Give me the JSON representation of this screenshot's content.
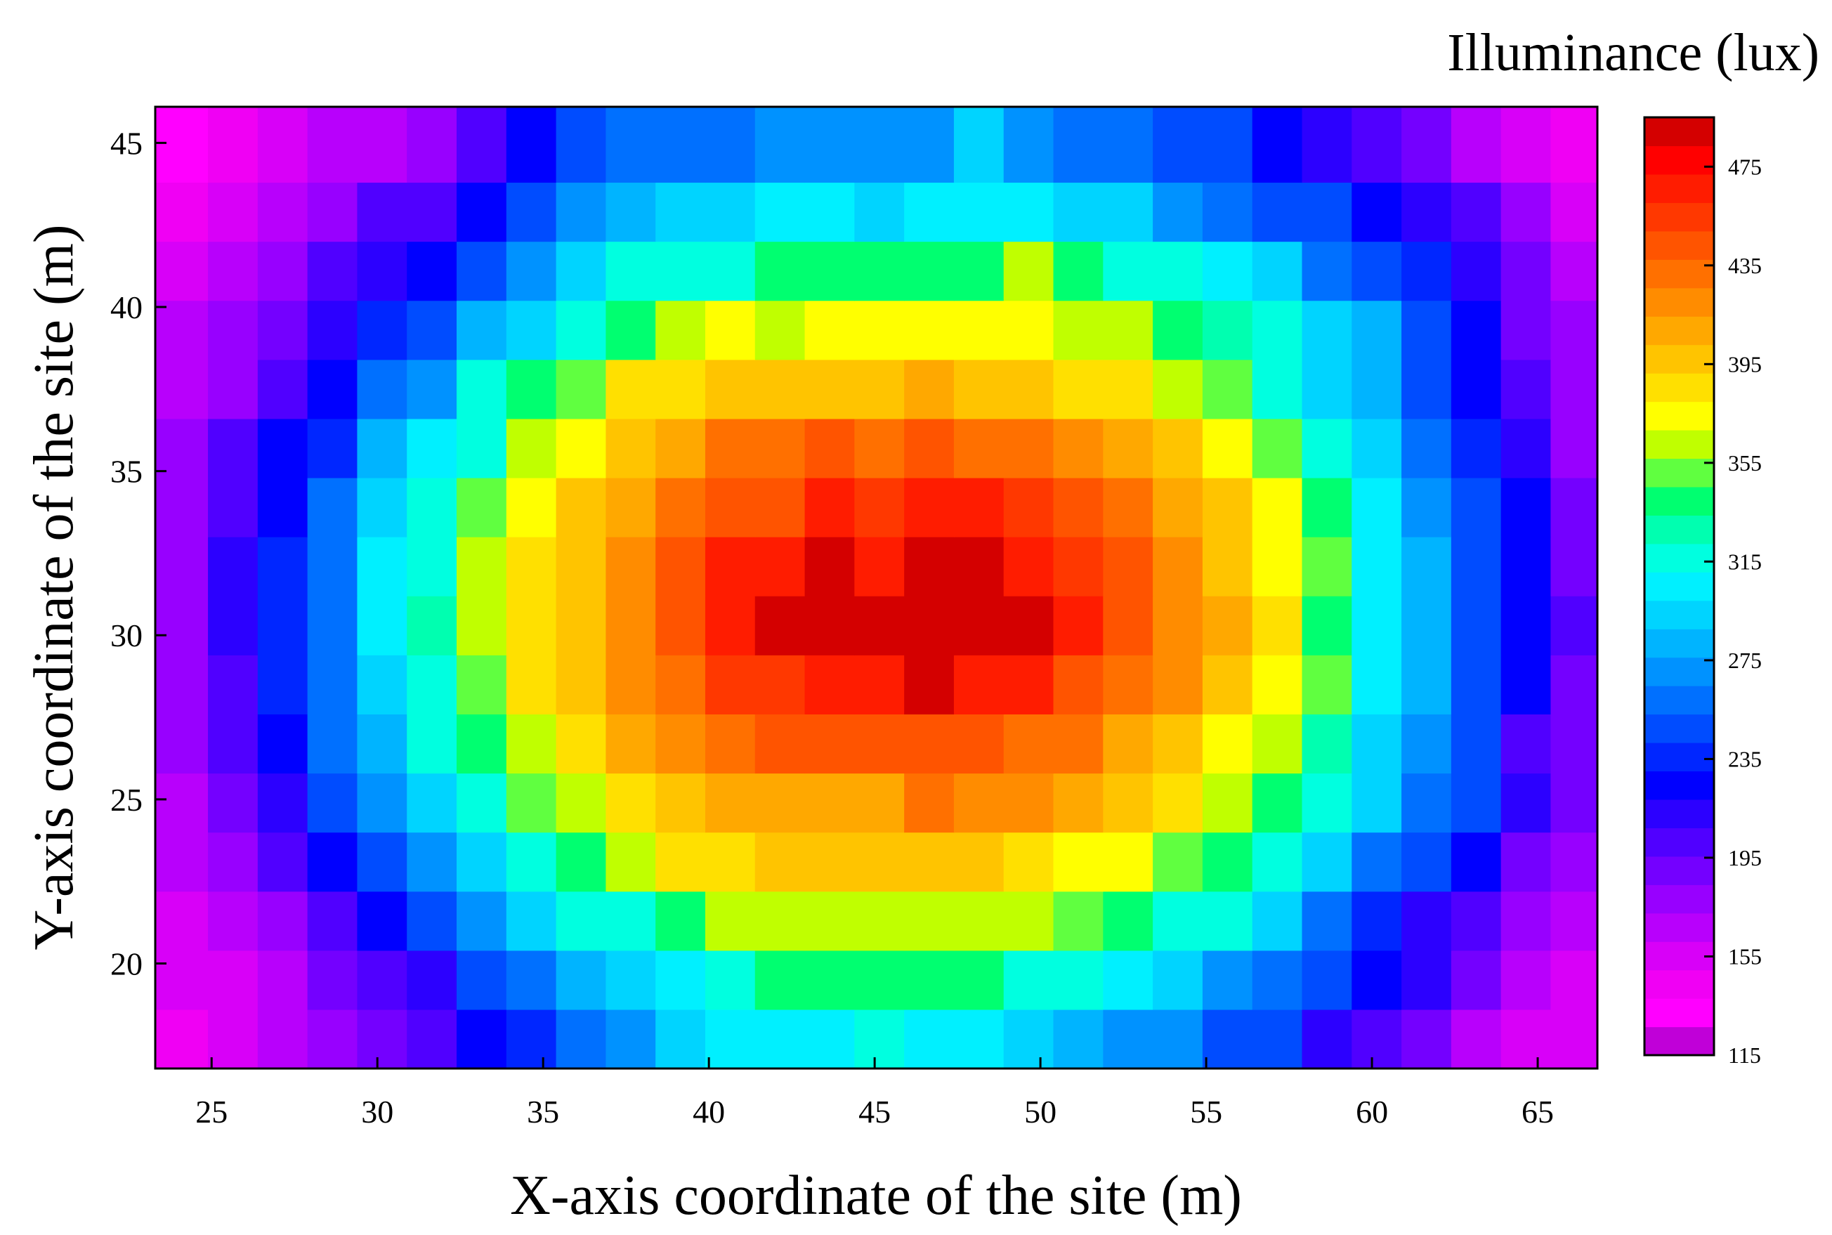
{
  "chart_data": {
    "type": "heatmap",
    "title": "Illuminance (lux)",
    "xlabel": "X-axis coordinate of the site (m)",
    "ylabel": "Y-axis coordinate of the site (m)",
    "xlim": [
      23.3,
      66.8
    ],
    "ylim": [
      16.8,
      46.1
    ],
    "x_ticks": [
      25,
      30,
      35,
      40,
      45,
      50,
      55,
      60,
      65
    ],
    "y_ticks": [
      20,
      25,
      30,
      35,
      40,
      45
    ],
    "x_tick_labels": [
      "25",
      "30",
      "35",
      "40",
      "45",
      "50",
      "55",
      "60",
      "65"
    ],
    "y_tick_labels": [
      "20",
      "25",
      "30",
      "35",
      "40",
      "45"
    ],
    "colorbar": {
      "min": 115,
      "max": 495,
      "ticks": [
        115,
        155,
        195,
        235,
        275,
        315,
        355,
        395,
        435,
        475
      ],
      "tick_labels": [
        "115",
        "155",
        "195",
        "235",
        "275",
        "315",
        "355",
        "395",
        "435",
        "475"
      ],
      "colors": [
        "#c000d8",
        "#ff00ff",
        "#f000f4",
        "#d800f8",
        "#b800fc",
        "#9800ff",
        "#7400ff",
        "#5000ff",
        "#2c00ff",
        "#0000ff",
        "#0026ff",
        "#004cff",
        "#0070ff",
        "#0092ff",
        "#00b4ff",
        "#00d4ff",
        "#00f0ff",
        "#00ffe0",
        "#00ffb0",
        "#00ff70",
        "#60ff40",
        "#c0ff00",
        "#ffff00",
        "#ffe000",
        "#ffc400",
        "#ffa800",
        "#ff8c00",
        "#ff7000",
        "#ff5400",
        "#ff3800",
        "#ff1c00",
        "#ff0000",
        "#d40000"
      ]
    },
    "x_centers": [
      24.14,
      25.64,
      27.14,
      28.64,
      30.14,
      31.64,
      33.14,
      34.64,
      36.14,
      37.64,
      39.14,
      40.64,
      42.14,
      43.64,
      45.14,
      46.64,
      48.14,
      49.64,
      51.14,
      52.64,
      54.14,
      55.64,
      57.14,
      58.64,
      60.14,
      61.64,
      63.14,
      64.64,
      66.14
    ],
    "y_centers": [
      17.7,
      19.5,
      21.3,
      23.1,
      24.9,
      26.7,
      28.5,
      30.3,
      32.1,
      33.9,
      35.7,
      37.5,
      39.3,
      41.1,
      42.9,
      44.7
    ],
    "z": [
      [
        146,
        151,
        162,
        174,
        190,
        206,
        222,
        240,
        260,
        276,
        292,
        300,
        304,
        304,
        314,
        304,
        304,
        296,
        284,
        276,
        276,
        250,
        250,
        218,
        206,
        188,
        172,
        160,
        150
      ],
      [
        152,
        160,
        172,
        188,
        204,
        218,
        244,
        262,
        284,
        296,
        310,
        322,
        334,
        338,
        338,
        338,
        338,
        322,
        312,
        302,
        292,
        276,
        258,
        246,
        226,
        212,
        188,
        172,
        160
      ],
      [
        158,
        170,
        184,
        202,
        226,
        244,
        270,
        296,
        312,
        322,
        340,
        358,
        368,
        368,
        368,
        368,
        368,
        358,
        348,
        340,
        322,
        312,
        292,
        262,
        240,
        212,
        198,
        182,
        166
      ],
      [
        164,
        180,
        198,
        222,
        246,
        270,
        298,
        322,
        340,
        368,
        380,
        390,
        392,
        392,
        392,
        392,
        392,
        388,
        378,
        370,
        354,
        340,
        312,
        294,
        262,
        244,
        230,
        194,
        176
      ],
      [
        170,
        188,
        210,
        248,
        272,
        290,
        312,
        348,
        366,
        388,
        392,
        412,
        414,
        414,
        414,
        428,
        420,
        416,
        410,
        400,
        388,
        368,
        338,
        312,
        292,
        258,
        244,
        210,
        186
      ],
      [
        176,
        198,
        222,
        258,
        286,
        312,
        334,
        364,
        384,
        406,
        418,
        426,
        438,
        444,
        444,
        444,
        444,
        436,
        426,
        414,
        396,
        376,
        362,
        324,
        294,
        268,
        244,
        204,
        190
      ],
      [
        182,
        206,
        236,
        262,
        294,
        322,
        352,
        382,
        394,
        418,
        434,
        452,
        460,
        464,
        464,
        485,
        466,
        464,
        448,
        434,
        418,
        396,
        376,
        354,
        306,
        278,
        250,
        222,
        194
      ],
      [
        184,
        208,
        238,
        264,
        300,
        324,
        360,
        386,
        400,
        424,
        440,
        470,
        485,
        485,
        485,
        485,
        485,
        485,
        470,
        440,
        424,
        404,
        380,
        340,
        310,
        284,
        252,
        226,
        198
      ],
      [
        184,
        208,
        236,
        264,
        300,
        322,
        360,
        384,
        400,
        424,
        440,
        470,
        470,
        485,
        470,
        485,
        485,
        466,
        452,
        440,
        424,
        396,
        376,
        354,
        310,
        284,
        252,
        222,
        194
      ],
      [
        178,
        204,
        230,
        256,
        290,
        312,
        348,
        376,
        392,
        414,
        430,
        448,
        448,
        466,
        452,
        466,
        466,
        452,
        438,
        428,
        404,
        396,
        376,
        340,
        306,
        272,
        250,
        220,
        190
      ],
      [
        174,
        198,
        222,
        238,
        280,
        302,
        322,
        362,
        376,
        396,
        404,
        426,
        426,
        442,
        428,
        442,
        428,
        428,
        420,
        412,
        396,
        376,
        354,
        322,
        294,
        262,
        236,
        210,
        184
      ],
      [
        166,
        184,
        206,
        220,
        258,
        276,
        312,
        338,
        354,
        380,
        386,
        396,
        396,
        396,
        396,
        408,
        396,
        396,
        388,
        380,
        366,
        354,
        322,
        294,
        286,
        250,
        222,
        202,
        176
      ],
      [
        164,
        174,
        192,
        210,
        236,
        246,
        284,
        298,
        322,
        338,
        358,
        376,
        366,
        376,
        376,
        376,
        376,
        376,
        366,
        358,
        338,
        330,
        312,
        298,
        278,
        244,
        222,
        192,
        176
      ],
      [
        152,
        162,
        178,
        196,
        208,
        222,
        250,
        272,
        294,
        312,
        312,
        322,
        338,
        338,
        338,
        338,
        338,
        358,
        338,
        320,
        312,
        304,
        296,
        260,
        250,
        236,
        210,
        190,
        170
      ],
      [
        146,
        158,
        166,
        176,
        196,
        206,
        222,
        252,
        270,
        286,
        294,
        296,
        300,
        310,
        296,
        310,
        310,
        310,
        298,
        290,
        276,
        262,
        250,
        244,
        226,
        212,
        196,
        176,
        160
      ],
      [
        128,
        146,
        152,
        162,
        172,
        182,
        200,
        222,
        242,
        254,
        262,
        262,
        274,
        274,
        274,
        274,
        288,
        274,
        264,
        262,
        250,
        250,
        222,
        210,
        200,
        192,
        170,
        152,
        146
      ]
    ]
  }
}
